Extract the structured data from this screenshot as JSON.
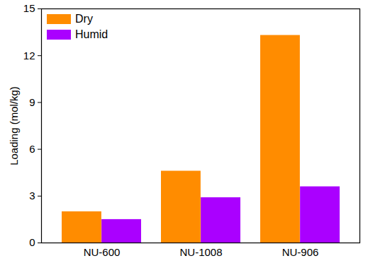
{
  "chart_data": {
    "type": "bar",
    "categories": [
      "NU-600",
      "NU-1008",
      "NU-906"
    ],
    "series": [
      {
        "name": "Dry",
        "color": "#FF8C00",
        "values": [
          2.0,
          4.6,
          13.3
        ]
      },
      {
        "name": "Humid",
        "color": "#AA00FF",
        "values": [
          1.5,
          2.9,
          3.6
        ]
      }
    ],
    "ylabel": "Loading (mol/kg)",
    "ylim": [
      0,
      15
    ],
    "yticks": [
      0,
      3,
      6,
      9,
      12,
      15
    ],
    "legend": "upper left"
  }
}
